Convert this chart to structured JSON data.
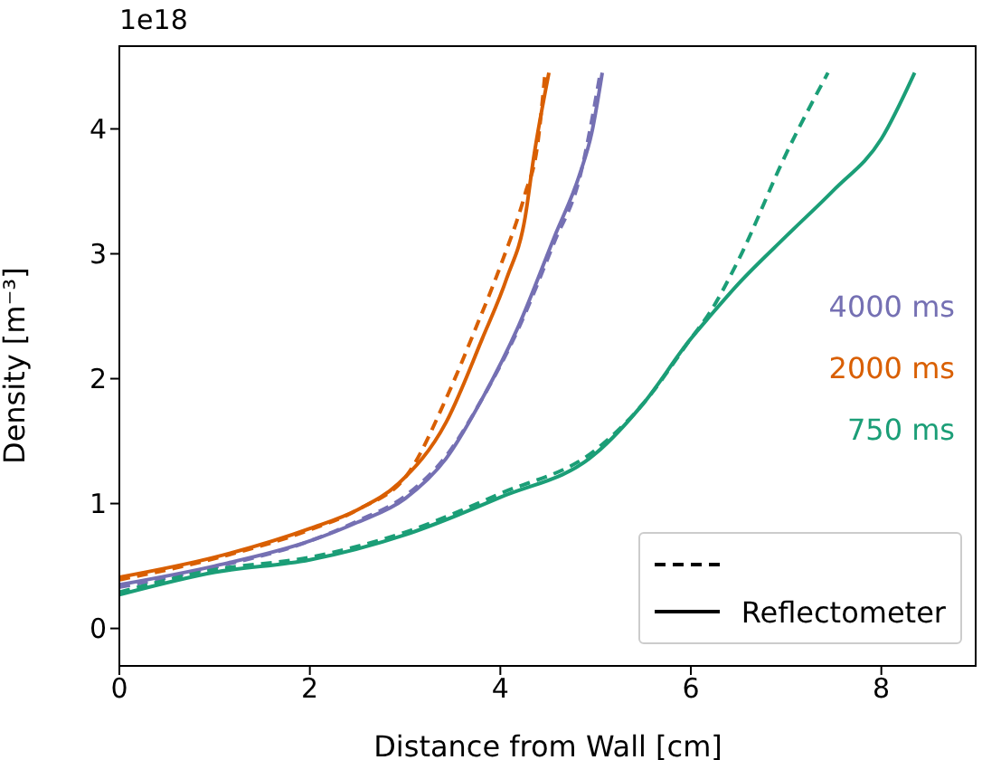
{
  "chart_data": {
    "type": "line",
    "xlabel": "Distance from Wall [cm]",
    "ylabel": "Density [m⁻³]",
    "xlim": [
      0,
      9
    ],
    "ylim": [
      -0.3,
      4.67
    ],
    "xticks": [
      0,
      2,
      4,
      6,
      8
    ],
    "yticks": [
      0,
      1,
      2,
      3,
      4
    ],
    "legend": "bottom right",
    "annotations": [
      "1e18",
      "Reflectometer"
    ],
    "series": [
      {
        "name": "4000 ms",
        "color": "#7570b3",
        "line_style": "solid",
        "x": [
          0,
          1,
          2,
          2.5,
          3,
          3.43,
          3.81,
          4.19,
          4.57,
          4.83,
          4.96,
          5.07
        ],
        "values": [
          0.35,
          0.5,
          0.7,
          0.85,
          1.04,
          1.36,
          1.84,
          2.42,
          3.14,
          3.63,
          3.97,
          4.45
        ]
      },
      {
        "name": "2000 ms",
        "color": "#d95f02",
        "line_style": "solid",
        "x": [
          0,
          1,
          2,
          2.5,
          2.93,
          3.43,
          3.81,
          4.07,
          4.26,
          4.35,
          4.51
        ],
        "values": [
          0.41,
          0.57,
          0.8,
          0.95,
          1.16,
          1.65,
          2.32,
          2.81,
          3.29,
          3.77,
          4.45
        ]
      },
      {
        "name": "750 ms",
        "color": "#1b9e77",
        "line_style": "solid",
        "x": [
          0,
          1,
          2,
          3,
          4,
          5,
          5.5,
          6,
          6.2,
          6.5,
          7,
          7.5,
          8,
          8.35
        ],
        "values": [
          0.27,
          0.45,
          0.55,
          0.75,
          1.05,
          1.4,
          1.8,
          2.32,
          2.5,
          2.76,
          3.14,
          3.51,
          3.92,
          4.45
        ]
      },
      {
        "color": "#7570b3",
        "line_style": "dashed",
        "x": [
          0,
          1,
          2,
          2.5,
          3,
          3.43,
          3.81,
          4.19,
          4.57,
          4.83,
          5.05
        ],
        "values": [
          0.33,
          0.49,
          0.7,
          0.86,
          1.06,
          1.38,
          1.84,
          2.4,
          3.1,
          3.6,
          4.45
        ]
      },
      {
        "color": "#d95f02",
        "line_style": "dashed",
        "x": [
          0,
          1,
          2,
          2.5,
          3.05,
          3.43,
          3.75,
          4,
          4.26,
          4.39,
          4.47
        ],
        "values": [
          0.39,
          0.56,
          0.79,
          0.95,
          1.26,
          1.84,
          2.42,
          2.9,
          3.48,
          3.87,
          4.45
        ]
      },
      {
        "color": "#1b9e77",
        "line_style": "dashed",
        "x": [
          0,
          1,
          2,
          3,
          4,
          5,
          5.5,
          6,
          6.2,
          6.5,
          7,
          7.44
        ],
        "values": [
          0.29,
          0.47,
          0.57,
          0.77,
          1.08,
          1.43,
          1.8,
          2.32,
          2.53,
          2.95,
          3.8,
          4.45
        ]
      }
    ]
  }
}
